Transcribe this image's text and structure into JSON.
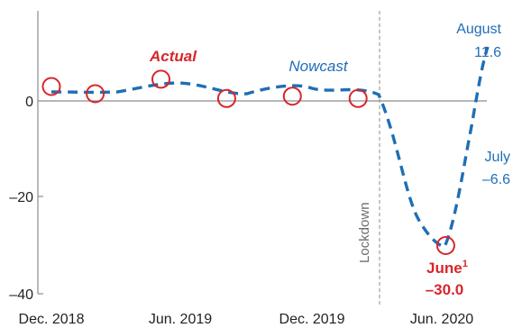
{
  "chart_data": {
    "type": "line",
    "x_tick_labels": [
      "Dec. 2018",
      "Jun. 2019",
      "Dec. 2019",
      "Jun. 2020"
    ],
    "ylim": [
      -40,
      20
    ],
    "y_ticks": [
      0,
      -20,
      -40
    ],
    "y_tick_labels": [
      "0",
      "–20",
      "–40"
    ],
    "grid": false,
    "colors": {
      "actual": "#d7262b",
      "nowcast": "#1f6eb6",
      "axis": "#8c8c8c",
      "lockdown": "#8c8c8c"
    },
    "series": [
      {
        "name": "Actual",
        "style": "open-circle",
        "points": [
          {
            "x": "Dec. 2018",
            "y": 3.0
          },
          {
            "x": "Feb. 2019",
            "y": 1.5
          },
          {
            "x": "May 2019",
            "y": 4.5
          },
          {
            "x": "Aug. 2019",
            "y": 0.5
          },
          {
            "x": "Nov. 2019",
            "y": 1.0
          },
          {
            "x": "Feb. 2020",
            "y": 0.5
          },
          {
            "x": "Jun. 2020",
            "y": -30.0
          }
        ]
      },
      {
        "name": "Nowcast",
        "style": "dashed-line",
        "points": [
          {
            "x": "Dec. 2018",
            "y": 2.0
          },
          {
            "x": "Feb. 2019",
            "y": 2.0
          },
          {
            "x": "Apr. 2019",
            "y": 3.5
          },
          {
            "x": "Jun. 2019",
            "y": 3.5
          },
          {
            "x": "Aug. 2019",
            "y": 2.0
          },
          {
            "x": "Oct. 2019",
            "y": 3.2
          },
          {
            "x": "Dec. 2019",
            "y": 2.8
          },
          {
            "x": "Feb. 2020",
            "y": 0.5
          },
          {
            "x": "Apr. 2020",
            "y": -14.0
          },
          {
            "x": "May 2020",
            "y": -26.0
          },
          {
            "x": "Jun. 2020",
            "y": -30.0
          },
          {
            "x": "Jul. 2020",
            "y": -6.6
          },
          {
            "x": "Aug. 2020",
            "y": 11.6
          }
        ]
      }
    ],
    "annotations": {
      "actual_label": "Actual",
      "nowcast_label": "Nowcast",
      "lockdown_label": "Lockdown",
      "june_label": "June",
      "june_footnote": "1",
      "june_value": "–30.0",
      "july_label": "July",
      "july_value": "–6.6",
      "august_label": "August",
      "august_value": "11.6"
    }
  }
}
